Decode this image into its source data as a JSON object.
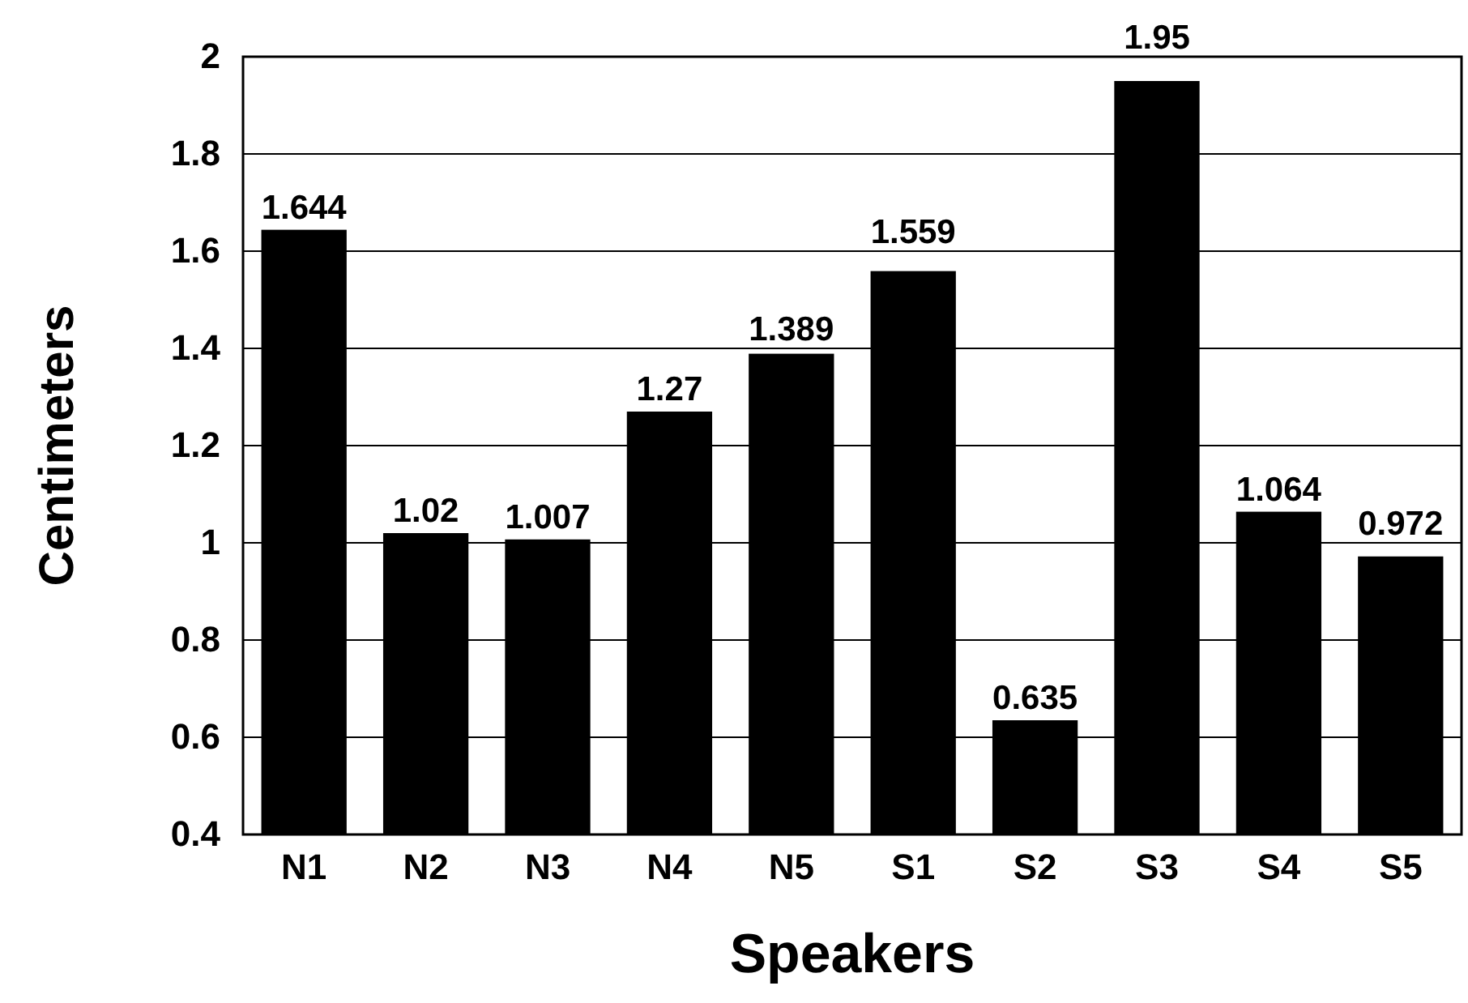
{
  "chart_data": {
    "type": "bar",
    "xlabel": "Speakers",
    "ylabel": "Centimeters",
    "categories": [
      "N1",
      "N2",
      "N3",
      "N4",
      "N5",
      "S1",
      "S2",
      "S3",
      "S4",
      "S5"
    ],
    "values": [
      1.644,
      1.02,
      1.007,
      1.27,
      1.389,
      1.559,
      0.635,
      1.95,
      1.064,
      0.972
    ],
    "color": "#000000",
    "ylim": [
      0.4,
      2
    ],
    "yticks": [
      0.4,
      0.6,
      0.8,
      1,
      1.2,
      1.4,
      1.6,
      1.8,
      2
    ],
    "grid": "y",
    "data_labels": true
  }
}
